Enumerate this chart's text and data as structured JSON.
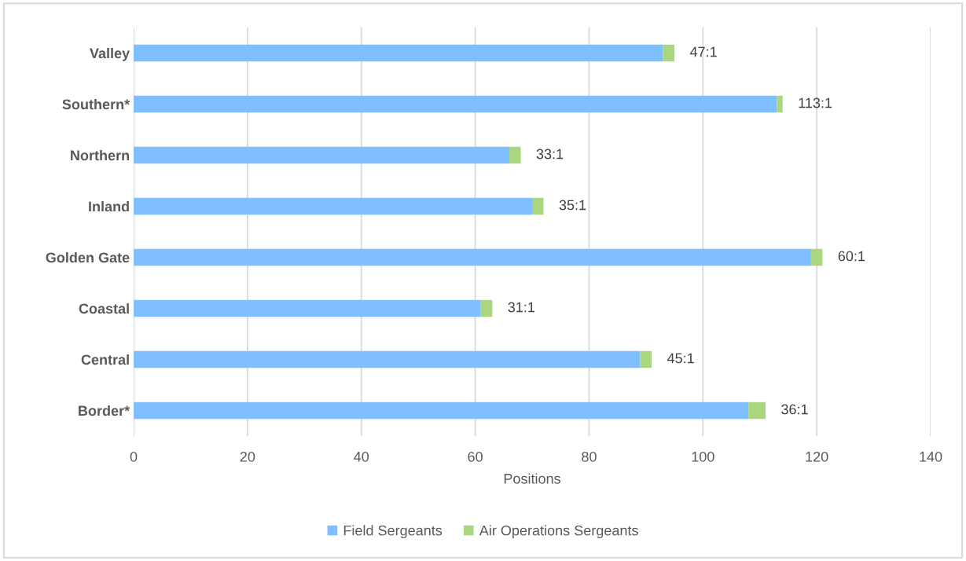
{
  "chart_data": {
    "type": "bar",
    "orientation": "horizontal",
    "stacked": true,
    "xlabel": "Positions",
    "categories": [
      "Valley",
      "Southern*",
      "Northern",
      "Inland",
      "Golden Gate",
      "Coastal",
      "Central",
      "Border*"
    ],
    "series": [
      {
        "name": "Field Sergeants",
        "color": "#7fbfff",
        "values": [
          93,
          113,
          66,
          70,
          119,
          61,
          89,
          108
        ]
      },
      {
        "name": "Air Operations Sergeants",
        "color": "#a9d67f",
        "values": [
          2,
          1,
          2,
          2,
          2,
          2,
          2,
          3
        ]
      }
    ],
    "xlim": [
      0,
      140
    ],
    "xticks": [
      0,
      20,
      40,
      60,
      80,
      100,
      120,
      140
    ],
    "grid": "x",
    "legend": "bottom",
    "annotations": [
      {
        "text": "47:1",
        "x": 95,
        "y": "Valley"
      },
      {
        "text": "113:1",
        "x": 114,
        "y": "Southern*"
      },
      {
        "text": "33:1",
        "x": 68,
        "y": "Northern"
      },
      {
        "text": "35:1",
        "x": 72,
        "y": "Inland"
      },
      {
        "text": "60:1",
        "x": 121,
        "y": "Golden Gate"
      },
      {
        "text": "31:1",
        "x": 63,
        "y": "Coastal"
      },
      {
        "text": "45:1",
        "x": 91,
        "y": "Central"
      },
      {
        "text": "36:1",
        "x": 111,
        "y": "Border*"
      }
    ]
  }
}
